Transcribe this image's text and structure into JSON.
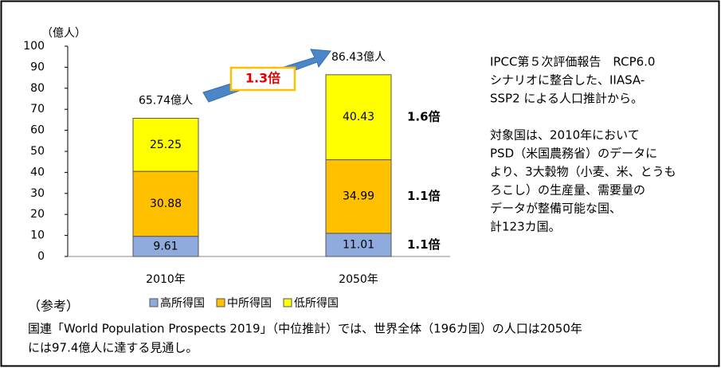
{
  "chart_data": {
    "type": "stacked-bar",
    "y_unit": "（億人）",
    "categories": [
      "2010年",
      "2050年"
    ],
    "series": [
      {
        "name": "高所得国",
        "color": "#8faadc",
        "values": [
          9.61,
          11.01
        ],
        "ratio_label": "1.1倍"
      },
      {
        "name": "中所得国",
        "color": "#ffc000",
        "values": [
          30.88,
          34.99
        ],
        "ratio_label": "1.1倍"
      },
      {
        "name": "低所得国",
        "color": "#ffff00",
        "values": [
          25.25,
          40.43
        ],
        "ratio_label": "1.6倍"
      }
    ],
    "totals": {
      "values": [
        65.74,
        86.43
      ],
      "value_labels": [
        "65.74億人",
        "86.43億人"
      ]
    },
    "growth_label": "1.3倍",
    "ylim": [
      0,
      100
    ],
    "yticks": [
      0,
      10,
      20,
      30,
      40,
      50,
      60,
      70,
      80,
      90,
      100
    ],
    "legend": "bottom",
    "grid": false
  },
  "side_note": {
    "paragraphs": [
      [
        "IPCC第５次評価報告　RCP6.0",
        "シナリオに整合した、IIASA-",
        "SSP2 による人口推計から。"
      ],
      [
        "対象国は、2010年において",
        "PSD（米国農務省）のデータに",
        "より、3大穀物（小麦、米、とうも",
        "ろこし）の生産量、需要量の",
        "データが整備可能な国、",
        "計123カ国。"
      ]
    ]
  },
  "reference": {
    "heading": "（参考）",
    "lines": [
      "国連「World Population Prospects 2019」（中位推計）では、世界全体（196カ国）の人口は2050年",
      "には97.4億人に達する見通し。"
    ]
  }
}
